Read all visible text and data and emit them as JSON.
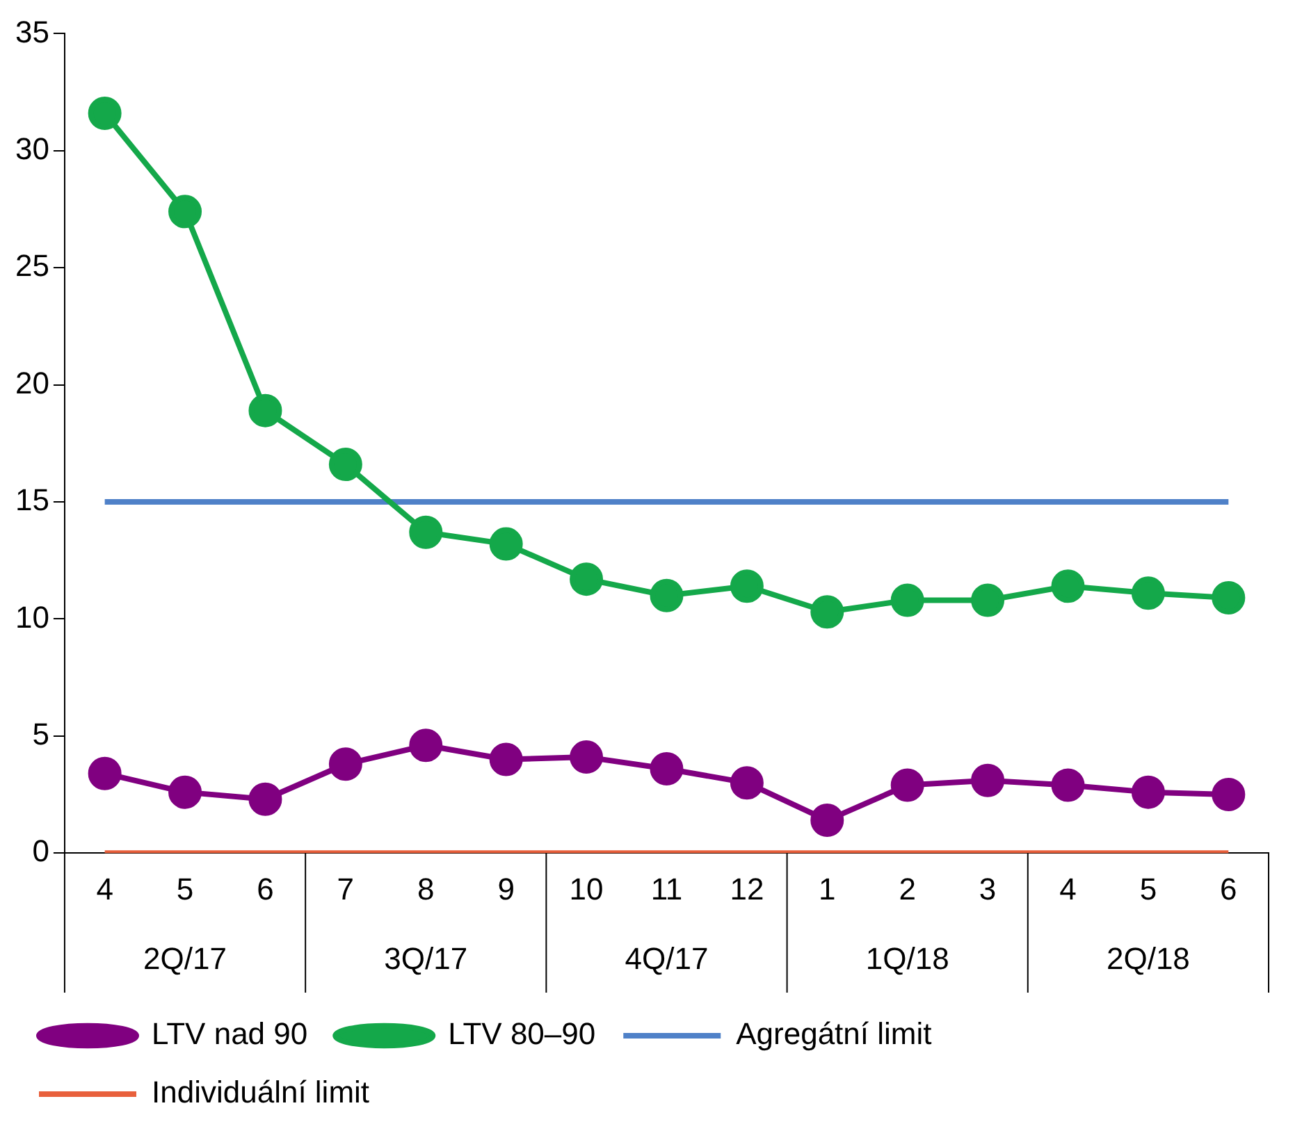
{
  "chart_data": {
    "type": "line",
    "categories": [
      "4",
      "5",
      "6",
      "7",
      "8",
      "9",
      "10",
      "11",
      "12",
      "1",
      "2",
      "3",
      "4",
      "5",
      "6"
    ],
    "annotations": [
      "2Q/17",
      "3Q/17",
      "4Q/17",
      "1Q/18",
      "2Q/18"
    ],
    "series": [
      {
        "name": "LTV nad 90",
        "color": "#800080",
        "marker": "circle",
        "values": [
          3.4,
          2.6,
          2.3,
          3.8,
          4.6,
          4.0,
          4.1,
          3.6,
          3.0,
          1.4,
          2.9,
          3.1,
          2.9,
          2.6,
          2.5
        ]
      },
      {
        "name": "LTV 80–90",
        "color": "#14a84a",
        "marker": "circle",
        "values": [
          31.6,
          27.4,
          18.9,
          16.6,
          13.7,
          13.2,
          11.7,
          11.0,
          11.4,
          10.3,
          10.8,
          10.8,
          11.4,
          11.1,
          10.9
        ]
      },
      {
        "name": "Agregátní limit",
        "color": "#4f81c8",
        "marker": "none",
        "values": [
          15,
          15,
          15,
          15,
          15,
          15,
          15,
          15,
          15,
          15,
          15,
          15,
          15,
          15,
          15
        ]
      },
      {
        "name": "Individuální limit",
        "color": "#e8603c",
        "marker": "none",
        "values": [
          0,
          0,
          0,
          0,
          0,
          0,
          0,
          0,
          0,
          0,
          0,
          0,
          0,
          0,
          0
        ]
      }
    ],
    "ylim": [
      0,
      35
    ],
    "yticks": [
      0,
      5,
      10,
      15,
      20,
      25,
      30,
      35
    ],
    "grid": false,
    "legend": "bottom",
    "line_style": "solid"
  }
}
